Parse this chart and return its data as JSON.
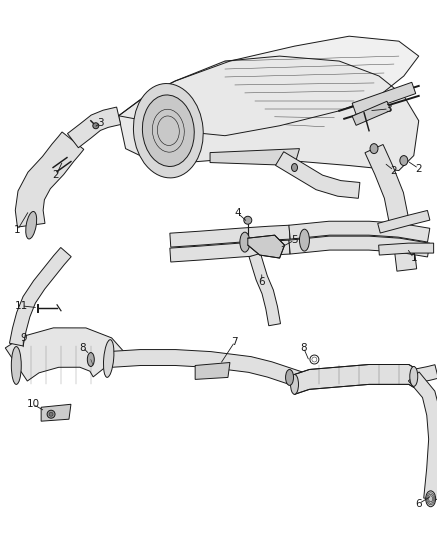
{
  "background_color": "#ffffff",
  "fig_width": 4.38,
  "fig_height": 5.33,
  "dpi": 100,
  "line_color": "#1a1a1a",
  "text_color": "#1a1a1a",
  "lw": 0.7
}
